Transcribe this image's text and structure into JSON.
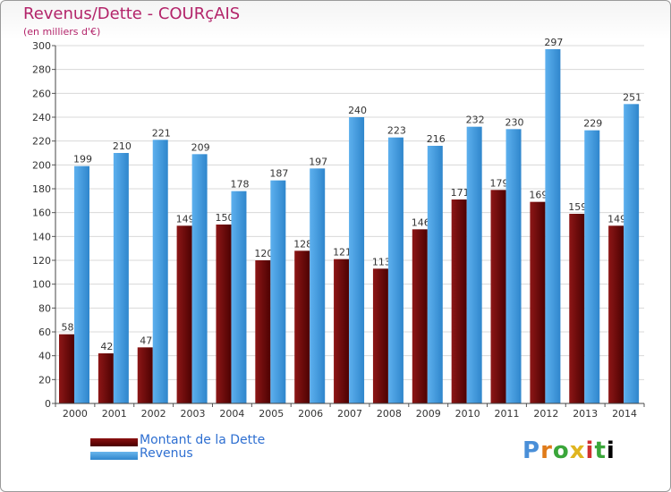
{
  "header": {
    "title": "Revenus/Dette - COURçAIS",
    "subtitle": "(en milliers d'€)"
  },
  "legend": {
    "debt_label": "Montant de la Dette",
    "revenue_label": "Revenus"
  },
  "brand": {
    "logo_text": "Proxiti"
  },
  "colors": {
    "title": "#b3246a",
    "debt": "#6b0a0a",
    "revenue": "#4aa3e6",
    "legend_text": "#2e6fd1"
  },
  "chart_data": {
    "type": "bar",
    "categories": [
      "2000",
      "2001",
      "2002",
      "2003",
      "2004",
      "2005",
      "2006",
      "2007",
      "2008",
      "2009",
      "2010",
      "2011",
      "2012",
      "2013",
      "2014"
    ],
    "series": [
      {
        "name": "Montant de la Dette",
        "values": [
          58,
          42,
          47,
          149,
          150,
          120,
          128,
          121,
          113,
          146,
          171,
          179,
          169,
          159,
          149
        ]
      },
      {
        "name": "Revenus",
        "values": [
          199,
          210,
          221,
          209,
          178,
          187,
          197,
          240,
          223,
          216,
          232,
          230,
          297,
          229,
          251
        ]
      }
    ],
    "ylim": [
      0,
      300
    ],
    "yticks": [
      0,
      20,
      40,
      60,
      80,
      100,
      120,
      140,
      160,
      180,
      200,
      220,
      240,
      260,
      280,
      300
    ],
    "grid": true,
    "legend_position": "bottom-left"
  }
}
